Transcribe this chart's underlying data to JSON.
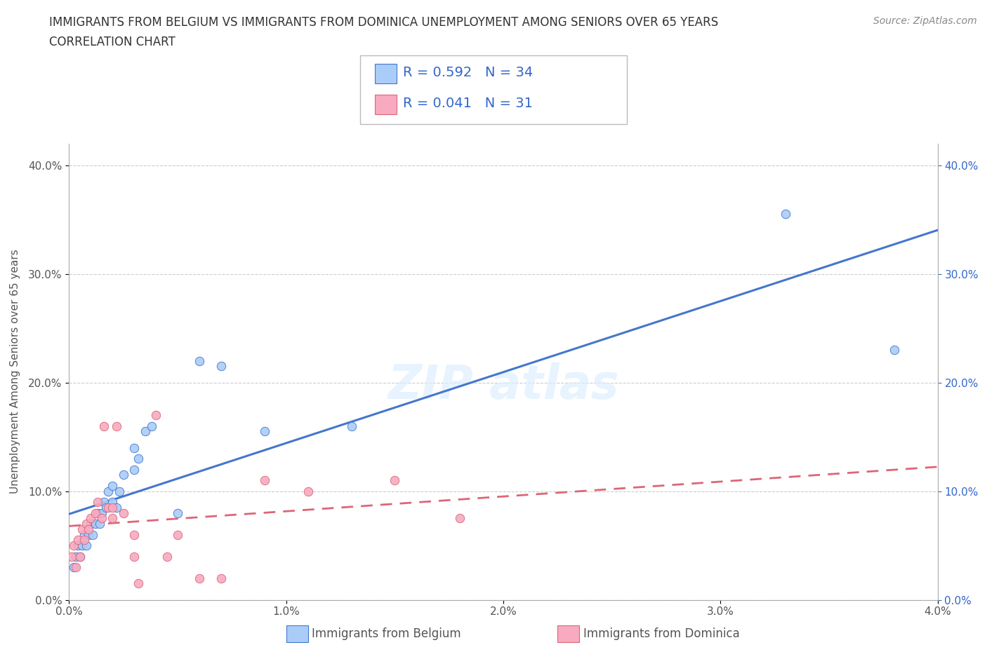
{
  "title_line1": "IMMIGRANTS FROM BELGIUM VS IMMIGRANTS FROM DOMINICA UNEMPLOYMENT AMONG SENIORS OVER 65 YEARS",
  "title_line2": "CORRELATION CHART",
  "source": "Source: ZipAtlas.com",
  "ylabel": "Unemployment Among Seniors over 65 years",
  "x_label_bottom": "Immigrants from Belgium",
  "x_label_bottom2": "Immigrants from Dominica",
  "xlim": [
    0.0,
    0.04
  ],
  "ylim": [
    0.0,
    0.42
  ],
  "x_ticks": [
    0.0,
    0.01,
    0.02,
    0.03,
    0.04
  ],
  "x_tick_labels": [
    "0.0%",
    "1.0%",
    "2.0%",
    "3.0%",
    "4.0%"
  ],
  "y_ticks": [
    0.0,
    0.1,
    0.2,
    0.3,
    0.4
  ],
  "y_tick_labels": [
    "0.0%",
    "10.0%",
    "20.0%",
    "30.0%",
    "40.0%"
  ],
  "belgium_color": "#aaccf8",
  "dominica_color": "#f8aac0",
  "belgium_line_color": "#4477cc",
  "dominica_line_color": "#dd6677",
  "R_belgium": 0.592,
  "N_belgium": 34,
  "R_dominica": 0.041,
  "N_dominica": 31,
  "belgium_x": [
    0.0002,
    0.0003,
    0.0004,
    0.0005,
    0.0006,
    0.0007,
    0.0008,
    0.0009,
    0.001,
    0.0011,
    0.0012,
    0.0013,
    0.0014,
    0.0015,
    0.0016,
    0.0017,
    0.0018,
    0.002,
    0.002,
    0.0022,
    0.0023,
    0.0025,
    0.003,
    0.003,
    0.0032,
    0.0035,
    0.0038,
    0.005,
    0.006,
    0.007,
    0.009,
    0.013,
    0.033,
    0.038
  ],
  "belgium_y": [
    0.03,
    0.04,
    0.05,
    0.04,
    0.05,
    0.06,
    0.05,
    0.06,
    0.07,
    0.06,
    0.07,
    0.08,
    0.07,
    0.08,
    0.09,
    0.085,
    0.1,
    0.09,
    0.105,
    0.085,
    0.1,
    0.115,
    0.14,
    0.12,
    0.13,
    0.155,
    0.16,
    0.08,
    0.22,
    0.215,
    0.155,
    0.16,
    0.355,
    0.23
  ],
  "dominica_x": [
    0.0001,
    0.0002,
    0.0003,
    0.0004,
    0.0005,
    0.0006,
    0.0007,
    0.0008,
    0.0009,
    0.001,
    0.0012,
    0.0013,
    0.0015,
    0.0016,
    0.0018,
    0.002,
    0.002,
    0.0022,
    0.0025,
    0.003,
    0.003,
    0.0032,
    0.004,
    0.0045,
    0.005,
    0.006,
    0.007,
    0.009,
    0.011,
    0.015,
    0.018
  ],
  "dominica_y": [
    0.04,
    0.05,
    0.03,
    0.055,
    0.04,
    0.065,
    0.055,
    0.07,
    0.065,
    0.075,
    0.08,
    0.09,
    0.075,
    0.16,
    0.085,
    0.075,
    0.085,
    0.16,
    0.08,
    0.04,
    0.06,
    0.015,
    0.17,
    0.04,
    0.06,
    0.02,
    0.02,
    0.11,
    0.1,
    0.11,
    0.075
  ],
  "grid_color": "#cccccc",
  "background_color": "#ffffff",
  "title_color": "#333333",
  "stat_color": "#3366cc"
}
